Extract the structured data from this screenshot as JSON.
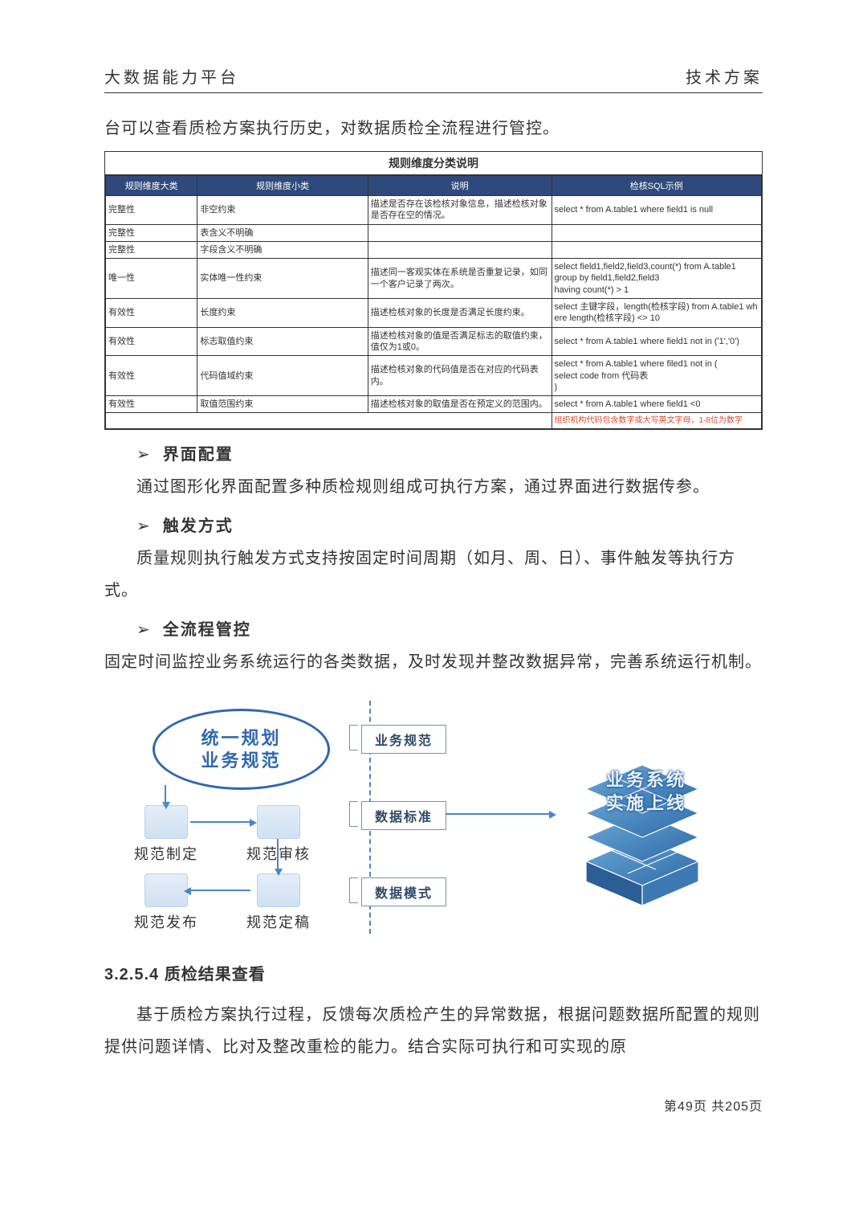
{
  "header": {
    "left": "大数据能力平台",
    "right": "技术方案"
  },
  "intro_para": "台可以查看质检方案执行历史，对数据质检全流程进行管控。",
  "table": {
    "title": "规则维度分类说明",
    "headers": [
      "规则维度大类",
      "规则维度小类",
      "说明",
      "检核SQL示例"
    ],
    "header_bg": "#30497b",
    "header_color": "#ffffff",
    "rows": [
      [
        "完整性",
        "非空约束",
        "描述是否存在该检核对象信息，描述检核对象是否存在空的情况。",
        "select * from A.table1 where field1 is null"
      ],
      [
        "完整性",
        "表含义不明确",
        "",
        ""
      ],
      [
        "完整性",
        "字段含义不明确",
        "",
        ""
      ],
      [
        "唯一性",
        "实体唯一性约束",
        "描述同一客观实体在系统是否重复记录，如同一个客户记录了两次。",
        "select field1,field2,field3,count(*) from A.table1\ngroup by field1,field2,field3\nhaving count(*) > 1"
      ],
      [
        "有效性",
        "长度约束",
        "描述检核对象的长度是否满足长度约束。",
        "select 主键字段，length(检核字段) from A.table1 where length(检核字段) <> 10"
      ],
      [
        "有效性",
        "标志取值约束",
        "描述检核对象的值是否满足标志的取值约束，值仅为1或0。",
        "select * from A.table1 where field1 not in ('1','0')"
      ],
      [
        "有效性",
        "代码值域约束",
        "描述检核对象的代码值是否在对应的代码表内。",
        "select * from A.table1 where filed1 not in (\nselect code from 代码表\n)"
      ],
      [
        "有效性",
        "取值范围约束",
        "描述检核对象的取值是否在预定义的范围内。",
        "select * from A.table1 where field1 <0"
      ]
    ],
    "partial_row": "组织机构代码包含数字或大写英文字母，1-8位为数字"
  },
  "bullets": [
    {
      "title": "界面配置",
      "para": "通过图形化界面配置多种质检规则组成可执行方案，通过界面进行数据传参。",
      "indent": true
    },
    {
      "title": "触发方式",
      "para": "质量规则执行触发方式支持按固定时间周期（如月、周、日）、事件触发等执行方式。",
      "indent": true,
      "wrap": true
    },
    {
      "title": "全流程管控",
      "para": "固定时间监控业务系统运行的各类数据，及时发现并整改数据异常，完善系统运行机制。",
      "indent": false,
      "wrap": true
    }
  ],
  "diagram": {
    "oval_line1": "统一规划",
    "oval_line2": "业务规范",
    "steps": {
      "top_right": "规范审核",
      "top_left": "规范制定",
      "bottom_left": "规范发布",
      "bottom_right": "规范定稿"
    },
    "bracket_labels": [
      "业务规范",
      "数据标准",
      "数据模式"
    ],
    "cube_line1": "业务系统",
    "cube_line2": "实施上线",
    "colors": {
      "oval_border": "#2e68b1",
      "arrow": "#4a86c6",
      "bracket_border": "#6f94b6",
      "cube_shadow": "#1e5a9c"
    }
  },
  "section_heading": "3.2.5.4 质检结果查看",
  "section_para": "基于质检方案执行过程，反馈每次质检产生的异常数据，根据问题数据所配置的规则提供问题详情、比对及整改重检的能力。结合实际可执行和可实现的原",
  "pager": "第49页 共205页"
}
